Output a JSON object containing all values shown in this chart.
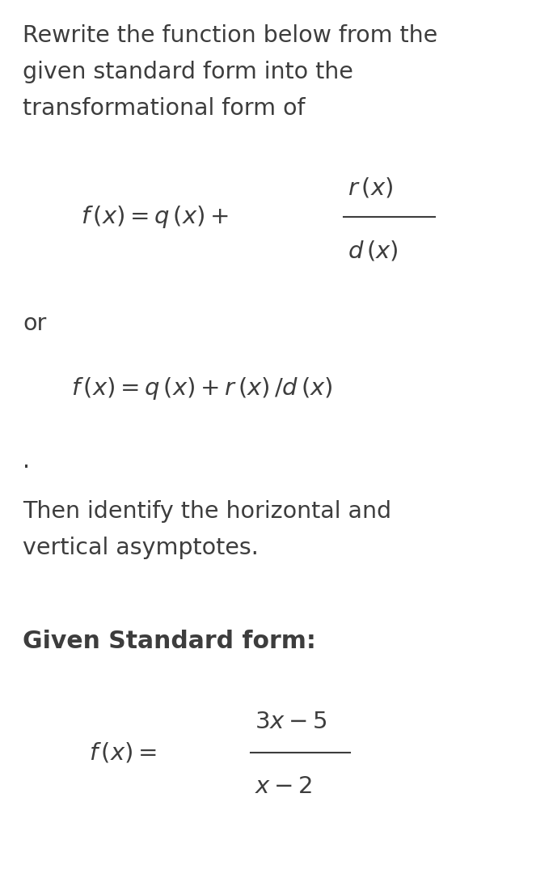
{
  "background_color": "#ffffff",
  "text_color": "#3d3d3d",
  "line1": "Rewrite the function below from the",
  "line2": "given standard form into the",
  "line3": "transformational form of",
  "or_text": "or",
  "dot": ".",
  "line4": "Then identify the horizontal and",
  "line5": "vertical asymptotes.",
  "given_label": "Given Standard form:",
  "font_size_text": 20.5,
  "font_size_formula": 21,
  "font_size_given_label": 21
}
